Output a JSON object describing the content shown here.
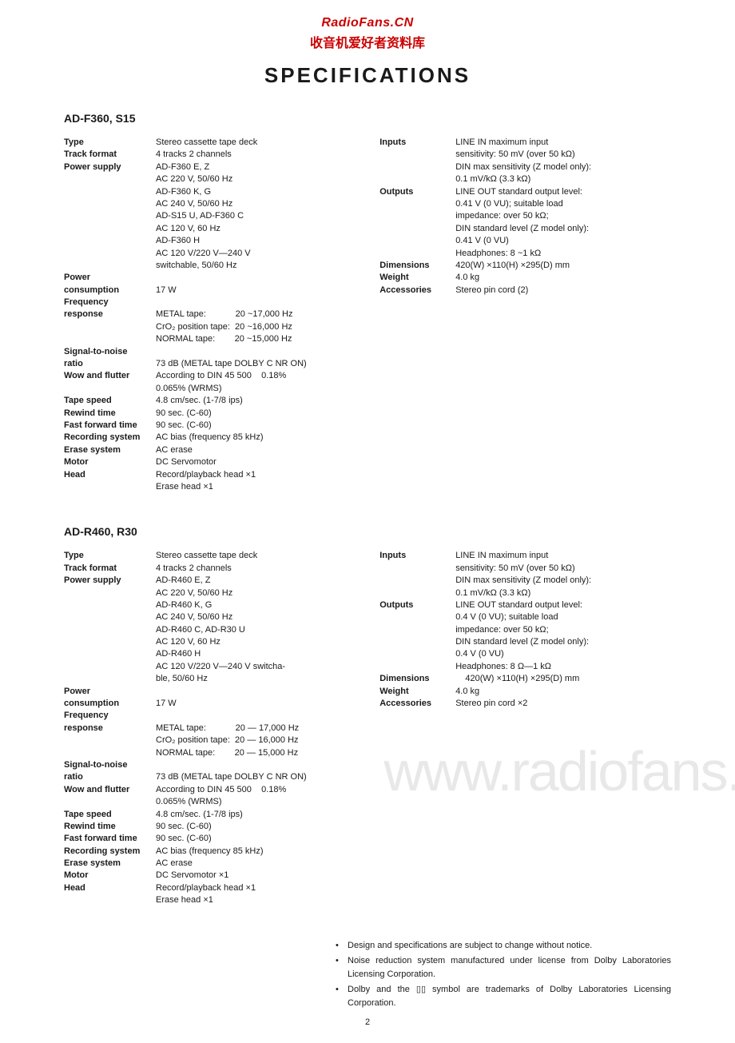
{
  "header": {
    "line1": "RadioFans.CN",
    "line2": "收音机爱好者资料库"
  },
  "title": "SPECIFICATIONS",
  "products": [
    {
      "name": "AD-F360, S15",
      "left_specs": [
        {
          "label": "Type",
          "value": "Stereo cassette tape deck"
        },
        {
          "label": "Track format",
          "value": "4 tracks 2 channels"
        },
        {
          "label": "Power supply",
          "value": "AD-F360 E, Z"
        },
        {
          "label": "",
          "value": "AC 220 V, 50/60 Hz"
        },
        {
          "label": "",
          "value": "AD-F360 K, G"
        },
        {
          "label": "",
          "value": "AC 240 V, 50/60 Hz"
        },
        {
          "label": "",
          "value": "AD-S15 U, AD-F360 C"
        },
        {
          "label": "",
          "value": "AC 120 V, 60 Hz"
        },
        {
          "label": "",
          "value": "AD-F360 H"
        },
        {
          "label": "",
          "value": "AC 120 V/220 V—240 V"
        },
        {
          "label": "",
          "value": "switchable, 50/60 Hz"
        },
        {
          "label": "Power",
          "value": ""
        },
        {
          "label": "consumption",
          "value": "17 W"
        },
        {
          "label": "Frequency",
          "value": ""
        },
        {
          "label": "response",
          "value": "METAL tape:            20 ~17,000 Hz"
        },
        {
          "label": "",
          "value": "CrO₂ position tape:  20 ~16,000 Hz"
        },
        {
          "label": "",
          "value": "NORMAL tape:        20 ~15,000 Hz"
        },
        {
          "label": "Signal-to-noise",
          "value": ""
        },
        {
          "label": "ratio",
          "value": "73 dB (METAL tape DOLBY C NR ON)"
        },
        {
          "label": "Wow and flutter",
          "value": "According to DIN 45 500    0.18%"
        },
        {
          "label": "",
          "value": "0.065% (WRMS)"
        },
        {
          "label": "Tape speed",
          "value": "4.8 cm/sec. (1-7/8 ips)"
        },
        {
          "label": "Rewind time",
          "value": "90 sec. (C-60)"
        },
        {
          "label": "Fast forward time",
          "value": "90 sec. (C-60)"
        },
        {
          "label": "Recording system",
          "value": "AC bias (frequency 85 kHz)"
        },
        {
          "label": "Erase system",
          "value": "AC erase"
        },
        {
          "label": "Motor",
          "value": "DC Servomotor"
        },
        {
          "label": "Head",
          "value": "Record/playback head ×1"
        },
        {
          "label": "",
          "value": "Erase head ×1"
        }
      ],
      "right_specs": [
        {
          "label": "Inputs",
          "value": "LINE IN maximum input"
        },
        {
          "label": "",
          "value": "sensitivity: 50 mV (over 50 kΩ)"
        },
        {
          "label": "",
          "value": "DIN max sensitivity (Z model only):"
        },
        {
          "label": "",
          "value": "0.1 mV/kΩ (3.3 kΩ)"
        },
        {
          "label": "Outputs",
          "value": "LINE OUT standard output level:"
        },
        {
          "label": "",
          "value": "0.41 V (0 VU); suitable load"
        },
        {
          "label": "",
          "value": "impedance: over 50 kΩ;"
        },
        {
          "label": "",
          "value": "DIN standard level (Z model only):"
        },
        {
          "label": "",
          "value": "0.41 V (0 VU)"
        },
        {
          "label": "",
          "value": "Headphones: 8 ~1 kΩ"
        },
        {
          "label": "Dimensions",
          "value": "420(W) ×110(H) ×295(D) mm"
        },
        {
          "label": "Weight",
          "value": "4.0 kg"
        },
        {
          "label": "Accessories",
          "value": "Stereo pin cord (2)"
        }
      ]
    },
    {
      "name": "AD-R460, R30",
      "left_specs": [
        {
          "label": "Type",
          "value": "Stereo cassette tape deck"
        },
        {
          "label": "Track format",
          "value": "4 tracks 2 channels"
        },
        {
          "label": "Power supply",
          "value": "AD-R460 E, Z"
        },
        {
          "label": "",
          "value": "AC 220 V, 50/60 Hz"
        },
        {
          "label": "",
          "value": "AD-R460 K, G"
        },
        {
          "label": "",
          "value": "AC 240 V, 50/60 Hz"
        },
        {
          "label": "",
          "value": "AD-R460 C, AD-R30 U"
        },
        {
          "label": "",
          "value": "AC 120 V, 60 Hz"
        },
        {
          "label": "",
          "value": "AD-R460 H"
        },
        {
          "label": "",
          "value": "AC 120 V/220 V—240 V switcha-"
        },
        {
          "label": "",
          "value": "ble, 50/60 Hz"
        },
        {
          "label": "Power",
          "value": ""
        },
        {
          "label": "consumption",
          "value": "17 W"
        },
        {
          "label": "Frequency",
          "value": ""
        },
        {
          "label": "response",
          "value": "METAL tape:            20 — 17,000 Hz"
        },
        {
          "label": "",
          "value": "CrO₂ position tape:  20 — 16,000 Hz"
        },
        {
          "label": "",
          "value": "NORMAL tape:        20 — 15,000 Hz"
        },
        {
          "label": "Signal-to-noise",
          "value": ""
        },
        {
          "label": "ratio",
          "value": "73 dB (METAL tape DOLBY C NR ON)"
        },
        {
          "label": "Wow and flutter",
          "value": "According to DIN 45 500    0.18%"
        },
        {
          "label": "",
          "value": "0.065% (WRMS)"
        },
        {
          "label": "Tape speed",
          "value": "4.8 cm/sec. (1-7/8 ips)"
        },
        {
          "label": "Rewind time",
          "value": "90 sec. (C-60)"
        },
        {
          "label": "Fast forward time",
          "value": "90 sec. (C-60)"
        },
        {
          "label": "Recording system",
          "value": "AC bias (frequency 85 kHz)"
        },
        {
          "label": "Erase system",
          "value": "AC erase"
        },
        {
          "label": "Motor",
          "value": "DC Servomotor ×1"
        },
        {
          "label": "Head",
          "value": "Record/playback head ×1"
        },
        {
          "label": "",
          "value": "Erase head ×1"
        }
      ],
      "right_specs": [
        {
          "label": "Inputs",
          "value": "LINE IN maximum input"
        },
        {
          "label": "",
          "value": "sensitivity: 50 mV (over 50 kΩ)"
        },
        {
          "label": "",
          "value": "DIN max sensitivity (Z model only):"
        },
        {
          "label": "",
          "value": "0.1 mV/kΩ (3.3 kΩ)"
        },
        {
          "label": "Outputs",
          "value": "LINE OUT standard output level:"
        },
        {
          "label": "",
          "value": "0.4 V (0 VU); suitable load"
        },
        {
          "label": "",
          "value": "impedance: over 50 kΩ;"
        },
        {
          "label": "",
          "value": "DIN standard level (Z model only):"
        },
        {
          "label": "",
          "value": "0.4 V (0 VU)"
        },
        {
          "label": "",
          "value": "Headphones: 8 Ω—1 kΩ"
        },
        {
          "label": "Dimensions",
          "value": "    420(W) ×110(H) ×295(D) mm"
        },
        {
          "label": "Weight",
          "value": "4.0 kg"
        },
        {
          "label": "Accessories",
          "value": "Stereo pin cord ×2"
        }
      ]
    }
  ],
  "notes": [
    "Design and specifications are subject to change without notice.",
    "Noise reduction system manufactured under license from Dolby Laboratories Licensing Corporation.",
    "Dolby and the ▯▯ symbol are trademarks of Dolby Laboratories Licensing Corporation."
  ],
  "watermark": "www.radiofans.c",
  "page_number": "2"
}
